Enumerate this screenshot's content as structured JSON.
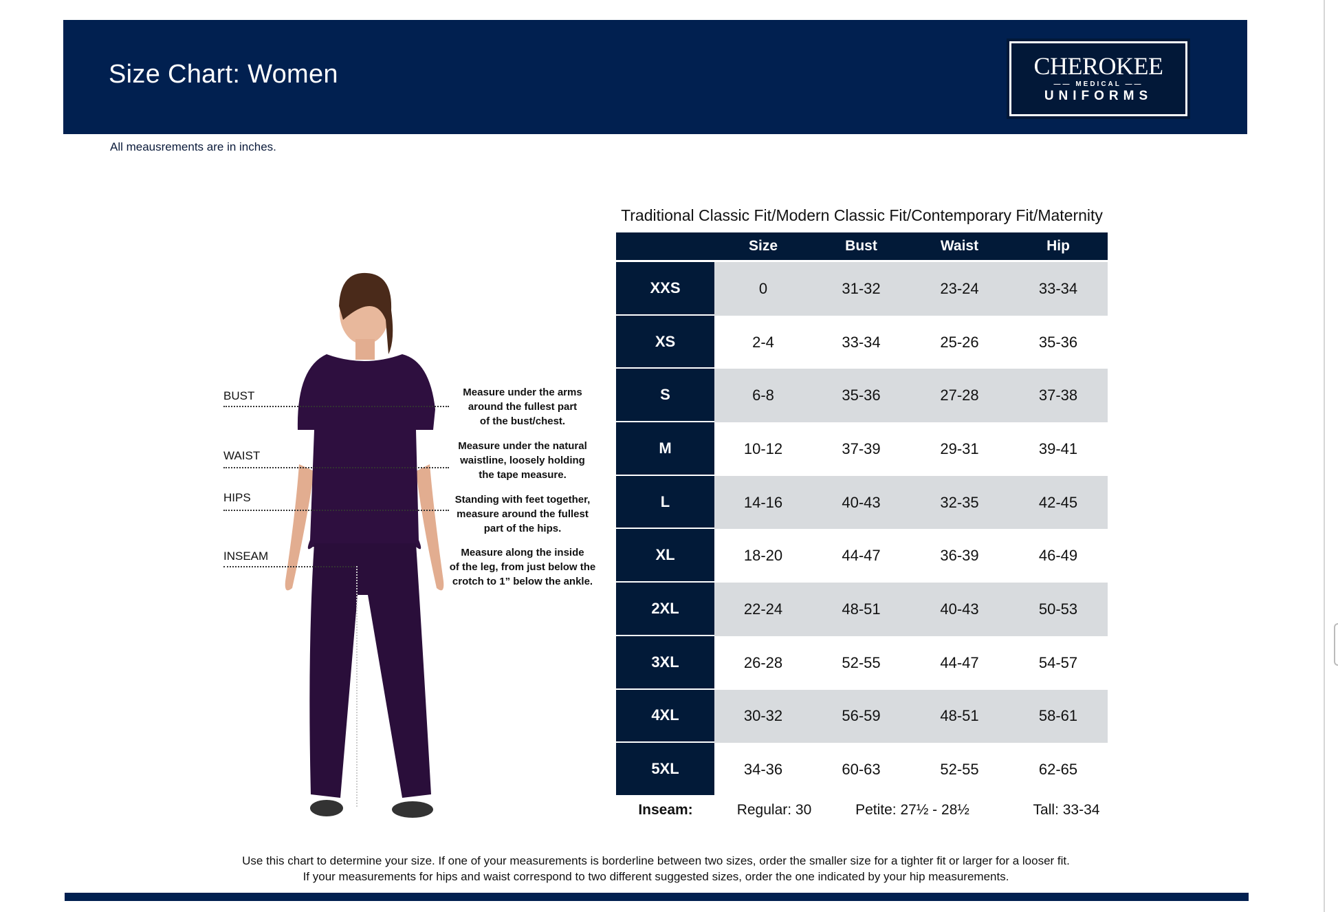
{
  "header": {
    "title": "Size Chart: Women",
    "logo": {
      "line1": "CHEROKEE",
      "line2": "MEDICAL",
      "line3": "UNIFORMS"
    }
  },
  "units_note": "All meausrements are in inches.",
  "measurements": [
    {
      "label": "BUST",
      "description": [
        "Measure under the arms",
        "around the fullest part",
        "of the bust/chest."
      ]
    },
    {
      "label": "WAIST",
      "description": [
        "Measure under the natural",
        "waistline, loosely holding",
        "the tape measure."
      ]
    },
    {
      "label": "HIPS",
      "description": [
        "Standing with feet together,",
        "measure around the fullest",
        "part of the hips."
      ]
    },
    {
      "label": "INSEAM",
      "description": [
        "Measure along the inside",
        "of the leg, from just below the",
        "crotch to 1” below the ankle."
      ]
    }
  ],
  "table": {
    "title": "Traditional Classic Fit/Modern Classic Fit/Contemporary Fit/Maternity",
    "headers": [
      "",
      "Size",
      "Bust",
      "Waist",
      "Hip"
    ],
    "rows": [
      [
        "XXS",
        "0",
        "31-32",
        "23-24",
        "33-34"
      ],
      [
        "XS",
        "2-4",
        "33-34",
        "25-26",
        "35-36"
      ],
      [
        "S",
        "6-8",
        "35-36",
        "27-28",
        "37-38"
      ],
      [
        "M",
        "10-12",
        "37-39",
        "29-31",
        "39-41"
      ],
      [
        "L",
        "14-16",
        "40-43",
        "32-35",
        "42-45"
      ],
      [
        "XL",
        "18-20",
        "44-47",
        "36-39",
        "46-49"
      ],
      [
        "2XL",
        "22-24",
        "48-51",
        "40-43",
        "50-53"
      ],
      [
        "3XL",
        "26-28",
        "52-55",
        "44-47",
        "54-57"
      ],
      [
        "4XL",
        "30-32",
        "56-59",
        "48-51",
        "58-61"
      ],
      [
        "5XL",
        "34-36",
        "60-63",
        "52-55",
        "62-65"
      ]
    ],
    "inseam": {
      "label": "Inseam:",
      "regular": "Regular: 30",
      "petite": "Petite: 27½ - 28½",
      "tall": "Tall: 33-34"
    }
  },
  "footer": [
    "Use this chart to determine your size. If one of your measurements is borderline between two sizes, order the smaller size for a tighter fit or larger for a looser fit.",
    "If your measurements for hips and waist correspond to two different suggested sizes, order the one indicated by your hip measurements."
  ],
  "colors": {
    "navy": "#012050",
    "table_dark": "#021a38",
    "row_shade": "#d8dbde",
    "scrubs": "#2e0f3f"
  }
}
